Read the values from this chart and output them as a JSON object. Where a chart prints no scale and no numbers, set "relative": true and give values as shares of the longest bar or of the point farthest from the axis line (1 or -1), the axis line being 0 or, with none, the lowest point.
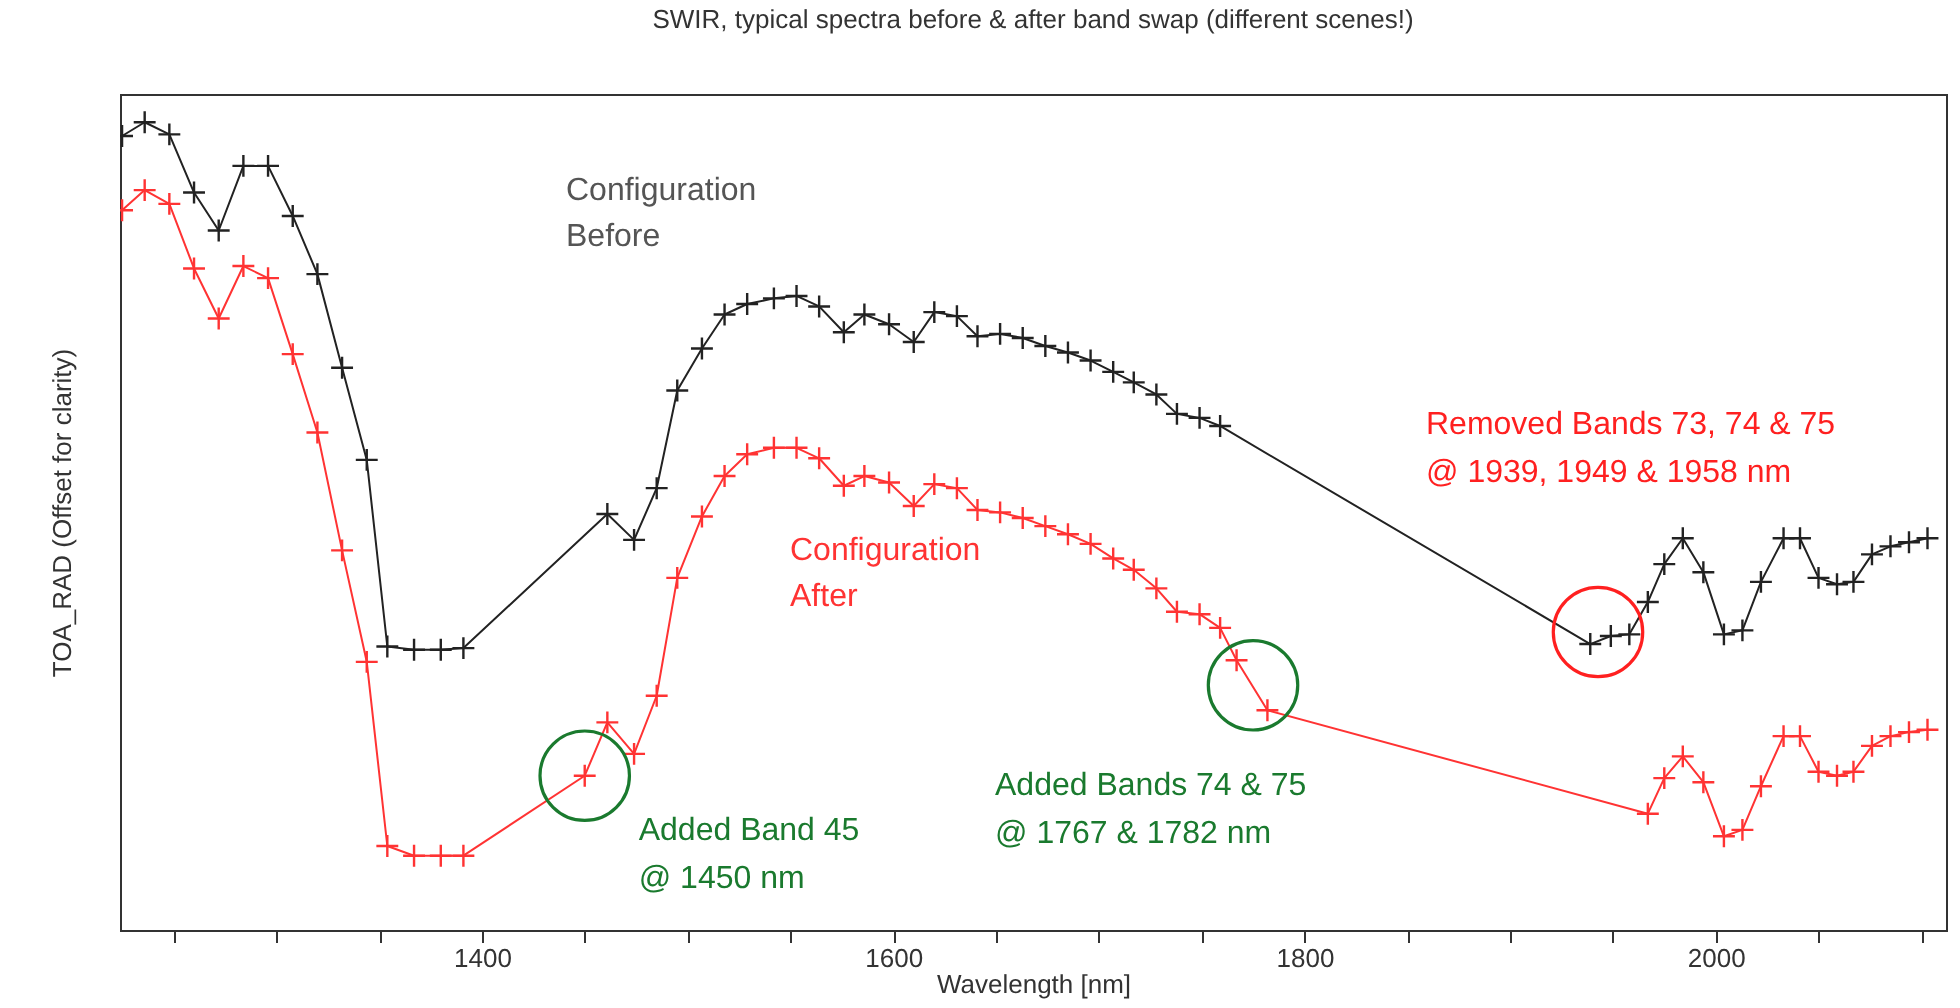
{
  "chart_data": {
    "type": "line",
    "title": "SWIR, typical spectra before & after band swap (different scenes!)",
    "xlabel": "Wavelength [nm]",
    "ylabel": "TOA_RAD (Offset for clarity)",
    "relative": true,
    "xlim": [
      1224,
      2112
    ],
    "xticks": [
      {
        "value": 1250,
        "label": null
      },
      {
        "value": 1300,
        "label": null
      },
      {
        "value": 1350,
        "label": null
      },
      1400,
      {
        "value": 1450,
        "label": null
      },
      {
        "value": 1500,
        "label": null
      },
      {
        "value": 1550,
        "label": null
      },
      1600,
      {
        "value": 1650,
        "label": null
      },
      {
        "value": 1700,
        "label": null
      },
      {
        "value": 1750,
        "label": null
      },
      1800,
      {
        "value": 1850,
        "label": null
      },
      {
        "value": 1900,
        "label": null
      },
      {
        "value": 1950,
        "label": null
      },
      2000,
      {
        "value": 2050,
        "label": null
      },
      {
        "value": 2100,
        "label": null
      }
    ],
    "grid": false,
    "marker": "cross",
    "line_style": "solid",
    "series": [
      {
        "name": "Configuration Before",
        "color": "#222222",
        "x": [
          1225,
          1236,
          1248,
          1260,
          1272,
          1284,
          1296,
          1308,
          1320,
          1332,
          1344,
          1354,
          1367,
          1380,
          1391,
          1461,
          1474,
          1485,
          1495,
          1507,
          1518,
          1529,
          1542,
          1553,
          1564,
          1576,
          1586,
          1598,
          1610,
          1620,
          1631,
          1641,
          1652,
          1663,
          1674,
          1685,
          1696,
          1707,
          1717,
          1728,
          1738,
          1749,
          1759,
          1939,
          1949,
          1958,
          1967,
          1975,
          1984,
          1994,
          2004,
          2013,
          2022,
          2033,
          2041,
          2050,
          2059,
          2067,
          2076,
          2085,
          2094,
          2103
        ],
        "values": [
          0.983,
          1.0,
          0.985,
          0.913,
          0.866,
          0.946,
          0.946,
          0.884,
          0.812,
          0.696,
          0.582,
          0.351,
          0.347,
          0.347,
          0.349,
          0.515,
          0.483,
          0.547,
          0.668,
          0.72,
          0.762,
          0.775,
          0.782,
          0.785,
          0.772,
          0.74,
          0.762,
          0.75,
          0.728,
          0.765,
          0.76,
          0.735,
          0.738,
          0.733,
          0.723,
          0.715,
          0.705,
          0.691,
          0.678,
          0.663,
          0.639,
          0.634,
          0.624,
          0.354,
          0.364,
          0.366,
          0.406,
          0.453,
          0.485,
          0.443,
          0.366,
          0.371,
          0.431,
          0.485,
          0.485,
          0.436,
          0.428,
          0.431,
          0.465,
          0.475,
          0.48,
          0.485
        ]
      },
      {
        "name": "Configuration After",
        "color": "#ff3333",
        "x": [
          1225,
          1236,
          1248,
          1260,
          1272,
          1284,
          1296,
          1308,
          1320,
          1332,
          1344,
          1354,
          1367,
          1380,
          1391,
          1450,
          1461,
          1474,
          1485,
          1495,
          1507,
          1518,
          1529,
          1542,
          1553,
          1564,
          1576,
          1586,
          1598,
          1610,
          1620,
          1631,
          1641,
          1652,
          1663,
          1674,
          1685,
          1696,
          1707,
          1717,
          1728,
          1738,
          1749,
          1759,
          1767,
          1782,
          1967,
          1975,
          1984,
          1994,
          2004,
          2013,
          2022,
          2033,
          2041,
          2050,
          2059,
          2067,
          2076,
          2085,
          2094,
          2103
        ],
        "values": [
          0.891,
          0.916,
          0.899,
          0.819,
          0.757,
          0.822,
          0.807,
          0.713,
          0.616,
          0.47,
          0.332,
          0.104,
          0.092,
          0.092,
          0.092,
          0.191,
          0.257,
          0.218,
          0.29,
          0.436,
          0.512,
          0.562,
          0.589,
          0.597,
          0.597,
          0.584,
          0.55,
          0.562,
          0.554,
          0.525,
          0.552,
          0.547,
          0.52,
          0.517,
          0.51,
          0.5,
          0.49,
          0.478,
          0.46,
          0.446,
          0.423,
          0.394,
          0.391,
          0.374,
          0.334,
          0.272,
          0.144,
          0.188,
          0.215,
          0.183,
          0.116,
          0.124,
          0.178,
          0.24,
          0.24,
          0.196,
          0.191,
          0.196,
          0.228,
          0.24,
          0.245,
          0.248
        ]
      }
    ],
    "annotations": [
      {
        "text": "Added Band 45\n@ 1450 nm",
        "x": 1450,
        "y": 0.191
      },
      {
        "text": "Added Bands 74 & 75\n@ 1767 & 1782 nm",
        "x": 1775,
        "y": 0.303
      },
      "Removed Bands 73, 74 & 75\n@ 1939, 1949 & 1958 nm"
    ]
  }
}
